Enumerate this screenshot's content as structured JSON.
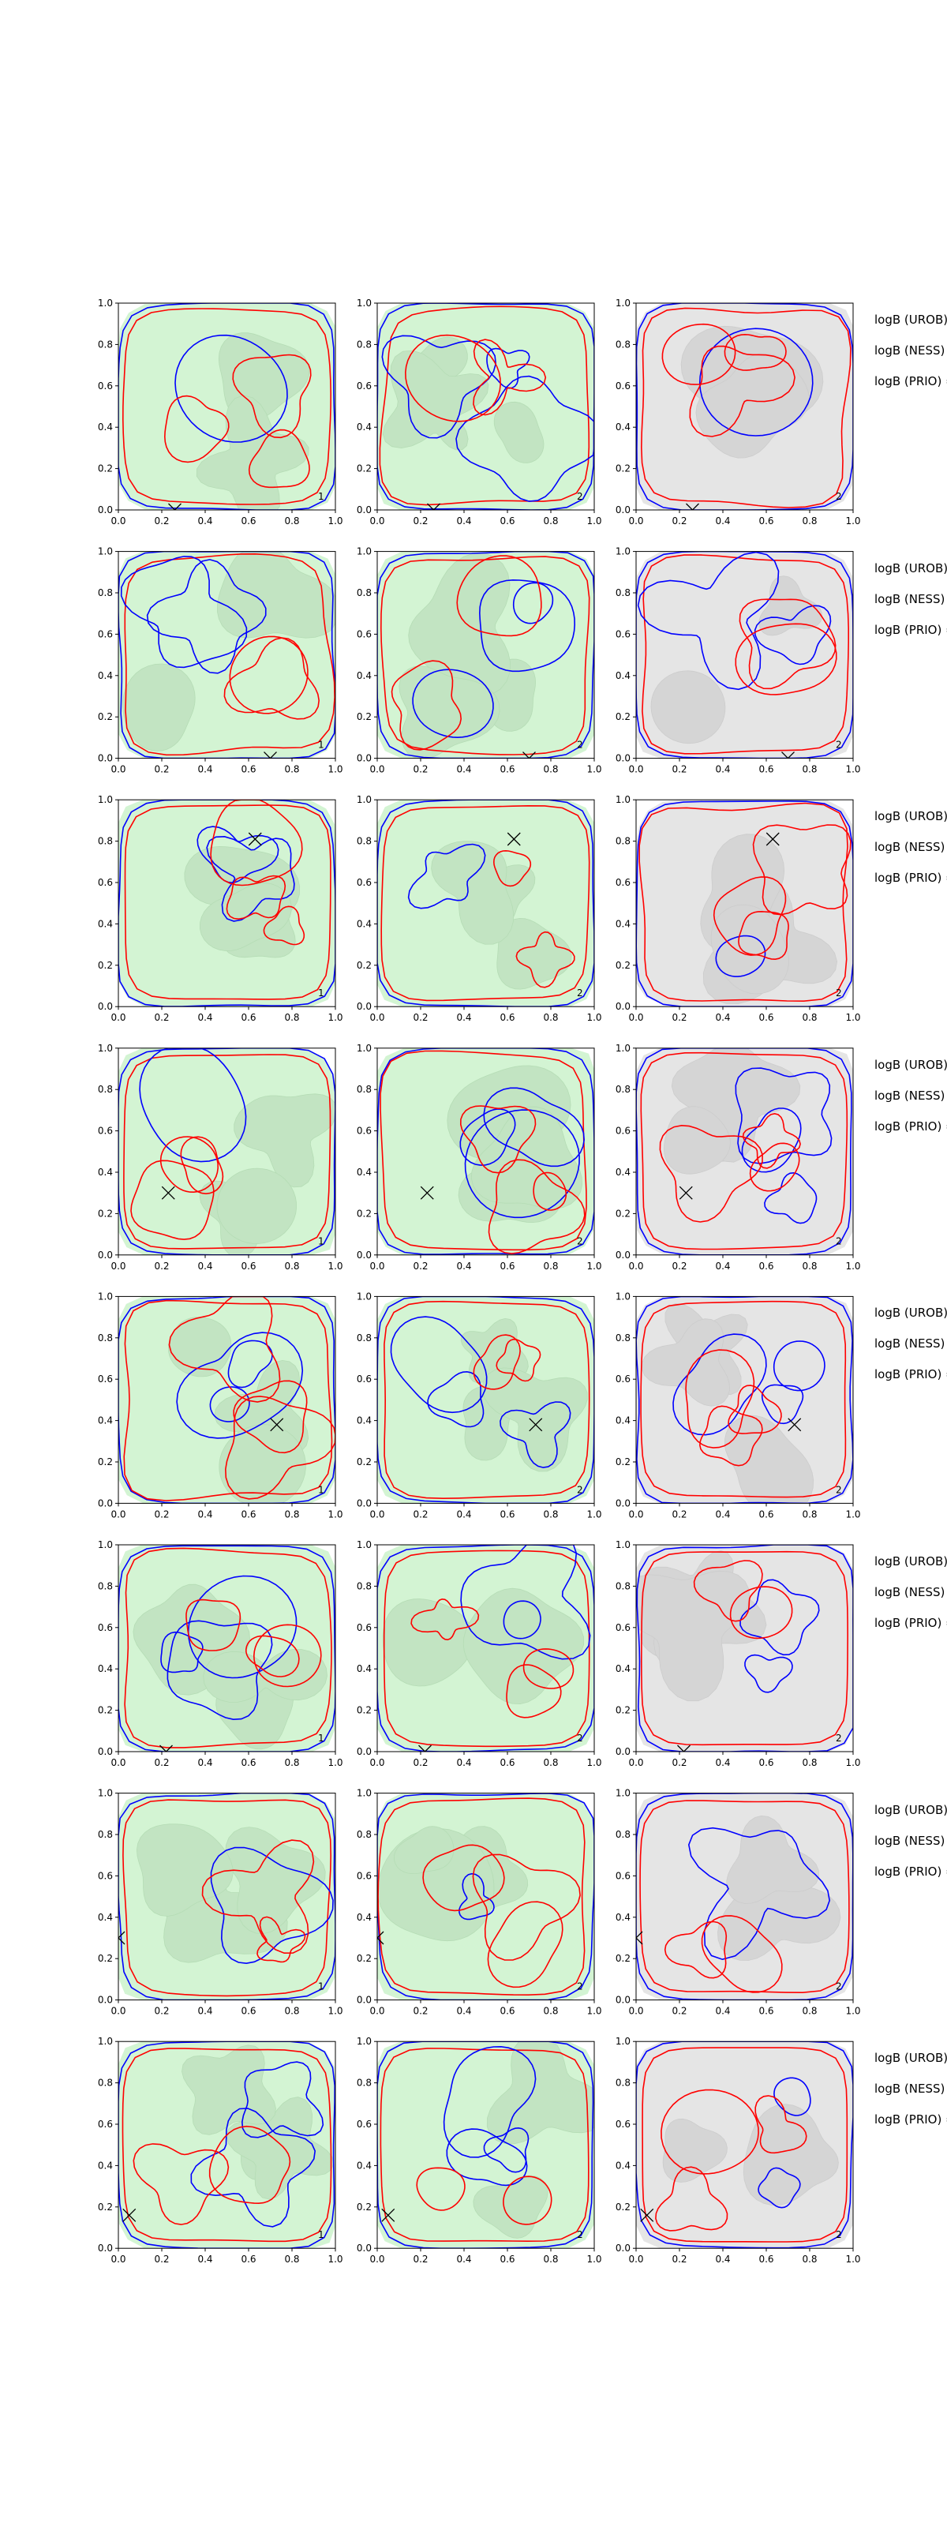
{
  "chart_data": {
    "type": "contour",
    "layout": "8 rows x 3 columns",
    "xlim": [
      0,
      1
    ],
    "ylim": [
      0,
      1
    ],
    "ticks": [
      "0.0",
      "0.2",
      "0.4",
      "0.6",
      "0.8",
      "1.0"
    ],
    "tick_values": [
      0,
      0.2,
      0.4,
      0.6,
      0.8,
      1.0
    ],
    "colors": {
      "blue_contour": "#0000ff",
      "red_contour": "#ff0000",
      "green_fill_light": "#d3f4d3",
      "green_fill_dark": "#c2e4c2",
      "gray_fill_light": "#e5e5e5",
      "gray_fill_dark": "#d5d5d5",
      "marker": "#000000"
    },
    "panel_labels": [
      "1",
      "2",
      "2"
    ],
    "row_labels": [
      "logB (UROB) =",
      "logB (NESS) =",
      "logB (PRIO) ="
    ],
    "rows": [
      {
        "marker": [
          0.26,
          0.0
        ]
      },
      {
        "marker": [
          0.7,
          0.0
        ]
      },
      {
        "marker": [
          0.63,
          0.81
        ]
      },
      {
        "marker": [
          0.23,
          0.3
        ]
      },
      {
        "marker": [
          0.73,
          0.38
        ]
      },
      {
        "marker": [
          0.22,
          0.0
        ]
      },
      {
        "marker": [
          0.0,
          0.3
        ]
      },
      {
        "marker": [
          0.05,
          0.16
        ]
      }
    ]
  }
}
